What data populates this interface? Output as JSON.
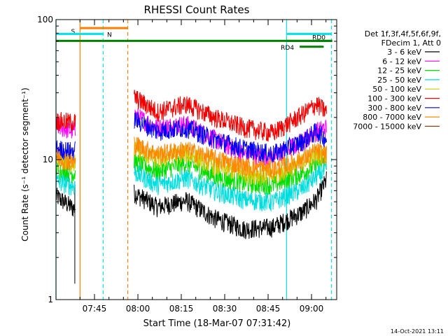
{
  "chart_data": {
    "type": "line",
    "title": "RHESSI Count Rates",
    "xlabel": "Start Time (18-Mar-07 07:31:42)",
    "ylabel": "Count Rate (s⁻¹ detector segment⁻¹)",
    "y_scale": "log",
    "ylim": [
      1,
      100
    ],
    "xlim_minutes_from_start": [
      0,
      97
    ],
    "y_ticks": [
      {
        "value": 1,
        "label": "1"
      },
      {
        "value": 10,
        "label": "10"
      },
      {
        "value": 100,
        "label": "100"
      }
    ],
    "x_ticks": [
      {
        "t": 13.3,
        "label": "07:45"
      },
      {
        "t": 28.3,
        "label": "08:00"
      },
      {
        "t": 43.3,
        "label": "08:15"
      },
      {
        "t": 58.3,
        "label": "08:30"
      },
      {
        "t": 73.3,
        "label": "08:45"
      },
      {
        "t": 88.3,
        "label": "09:00"
      }
    ],
    "legend": {
      "placement": "right",
      "header": [
        "Det 1f,3f,4f,5f,6f,9f,",
        "FDecim 1, Att 0"
      ]
    },
    "segments": [
      [
        0,
        6.8
      ],
      [
        27,
        93.5
      ]
    ],
    "series": [
      {
        "name": "3 - 6 keV",
        "color": "#000000",
        "t": [
          0,
          6,
          27,
          35,
          45,
          55,
          65,
          75,
          85,
          90,
          93.5
        ],
        "values": [
          5.5,
          4.5,
          5.8,
          4.6,
          5.1,
          3.8,
          3.2,
          3.3,
          4.2,
          5.2,
          7.2
        ]
      },
      {
        "name": "6 - 12 keV",
        "color": "#ff00ff",
        "t": [
          0,
          6,
          27,
          35,
          45,
          55,
          65,
          75,
          85,
          90,
          93.5
        ],
        "values": [
          17.5,
          16,
          21,
          17,
          18,
          14,
          11,
          10.5,
          13.5,
          16,
          17
        ]
      },
      {
        "name": "12 - 25 keV",
        "color": "#00dd00",
        "t": [
          0,
          6,
          27,
          35,
          45,
          55,
          65,
          75,
          85,
          90,
          93.5
        ],
        "values": [
          8.5,
          8,
          9.8,
          8.2,
          9.5,
          7.6,
          6.8,
          6.6,
          8,
          9.2,
          9.5
        ]
      },
      {
        "name": "25 - 50 keV",
        "color": "#00dddd",
        "t": [
          0,
          6,
          27,
          35,
          45,
          55,
          65,
          75,
          85,
          90,
          93.5
        ],
        "values": [
          7,
          6.5,
          8.2,
          6.6,
          7.4,
          6,
          5.2,
          5,
          6.2,
          7.6,
          8.4
        ]
      },
      {
        "name": "50 - 100 keV",
        "color": "#cccc00",
        "t": [
          0,
          6,
          27,
          35,
          45,
          55,
          65,
          75,
          85,
          90,
          93.5
        ],
        "values": [
          10,
          9.5,
          12,
          10,
          11.2,
          9,
          8,
          7.6,
          9.6,
          11,
          11
        ]
      },
      {
        "name": "100 - 300 keV",
        "color": "#ee0000",
        "t": [
          0,
          6,
          27,
          35,
          45,
          55,
          65,
          75,
          85,
          90,
          93.5
        ],
        "values": [
          19,
          18.5,
          28,
          22,
          25,
          20,
          17,
          15.5,
          21,
          25,
          22
        ]
      },
      {
        "name": "300 - 800 keV",
        "color": "#0000ee",
        "t": [
          0,
          6,
          27,
          35,
          45,
          55,
          65,
          75,
          85,
          90,
          93.5
        ],
        "values": [
          12,
          11.5,
          19.5,
          16,
          17,
          14,
          12,
          11,
          13.5,
          16,
          14
        ]
      },
      {
        "name": "800 - 7000 keV",
        "color": "#ff8800",
        "t": [
          0,
          6,
          27,
          35,
          45,
          55,
          65,
          75,
          85,
          90,
          93.5
        ],
        "values": [
          10.5,
          9.5,
          13,
          11,
          11.8,
          10.2,
          9,
          8.6,
          10,
          11.6,
          10.8
        ]
      },
      {
        "name": "7000 - 15000 keV",
        "color": "#8b4513",
        "t": [],
        "values": []
      }
    ],
    "annotations": {
      "vlines": [
        {
          "t": 0,
          "color": "#00e5ee",
          "style": "solid"
        },
        {
          "t": 8.3,
          "color": "#ff7f00",
          "style": "solid"
        },
        {
          "t": 16.3,
          "color": "#00e5ee",
          "style": "dashed"
        },
        {
          "t": 24.8,
          "color": "#ff7f00",
          "style": "dashed"
        },
        {
          "t": 79.7,
          "color": "#00e5ee",
          "style": "solid"
        },
        {
          "t": 95.2,
          "color": "#00e5ee",
          "style": "dashed"
        }
      ],
      "bars": [
        {
          "label": "S",
          "t0": 8.3,
          "t1": 24.8,
          "y": 87,
          "color": "#ff7f00"
        },
        {
          "label": "N",
          "t0": 0,
          "t1": 16.3,
          "y": 79,
          "color": "#00e5ee"
        },
        {
          "label": "",
          "t0": 79.7,
          "t1": 95.2,
          "y": 79,
          "color": "#00e5ee"
        },
        {
          "label": "",
          "t0": 0,
          "t1": 95.5,
          "y": 70.5,
          "color": "#008000"
        },
        {
          "label": "RD0",
          "t0": 79.7,
          "t1": 95.2,
          "y": 70.5,
          "color": "#008000"
        },
        {
          "label": "RD4",
          "t0": 84.2,
          "t1": 92.5,
          "y": 64,
          "color": "#008000"
        }
      ],
      "early_drop": {
        "t": 6.5,
        "from": 7,
        "to": 1.3
      }
    },
    "grid": false
  },
  "footer": {
    "timestamp": "14-Oct-2021 13:11"
  }
}
